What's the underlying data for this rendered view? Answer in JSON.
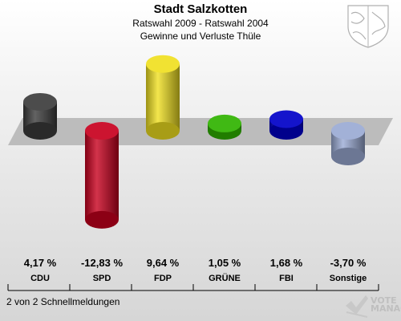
{
  "header": {
    "title": "Stadt Salzkotten",
    "subtitle1": "Ratswahl 2009 - Ratswahl 2004",
    "subtitle2": "Gewinne und Verluste Thüle"
  },
  "footer": {
    "text": "2 von 2 Schnellmeldungen"
  },
  "logo": {
    "line1": "VOTE",
    "line2": "MANAGER"
  },
  "icons": {
    "crest": "coat-of-arms-icon",
    "vote_manager": "vote-manager-logo-icon"
  },
  "chart_data": {
    "type": "bar",
    "categories": [
      "CDU",
      "SPD",
      "FDP",
      "GRÜNE",
      "FBI",
      "Sonstige"
    ],
    "values": [
      4.17,
      -12.83,
      9.64,
      1.05,
      1.68,
      -3.7
    ],
    "value_labels": [
      "4,17 %",
      "-12,83 %",
      "9,64 %",
      "1,05 %",
      "1,68 %",
      "-3,70 %"
    ],
    "colors": [
      "#3c3c3c",
      "#c8001e",
      "#f0e020",
      "#2fb300",
      "#0000c8",
      "#9aaad4"
    ],
    "title": "Stadt Salzkotten",
    "subtitle": "Ratswahl 2009 - Ratswahl 2004 / Gewinne und Verluste Thüle",
    "xlabel": "",
    "ylabel": "",
    "grid": false,
    "legend": "none"
  }
}
